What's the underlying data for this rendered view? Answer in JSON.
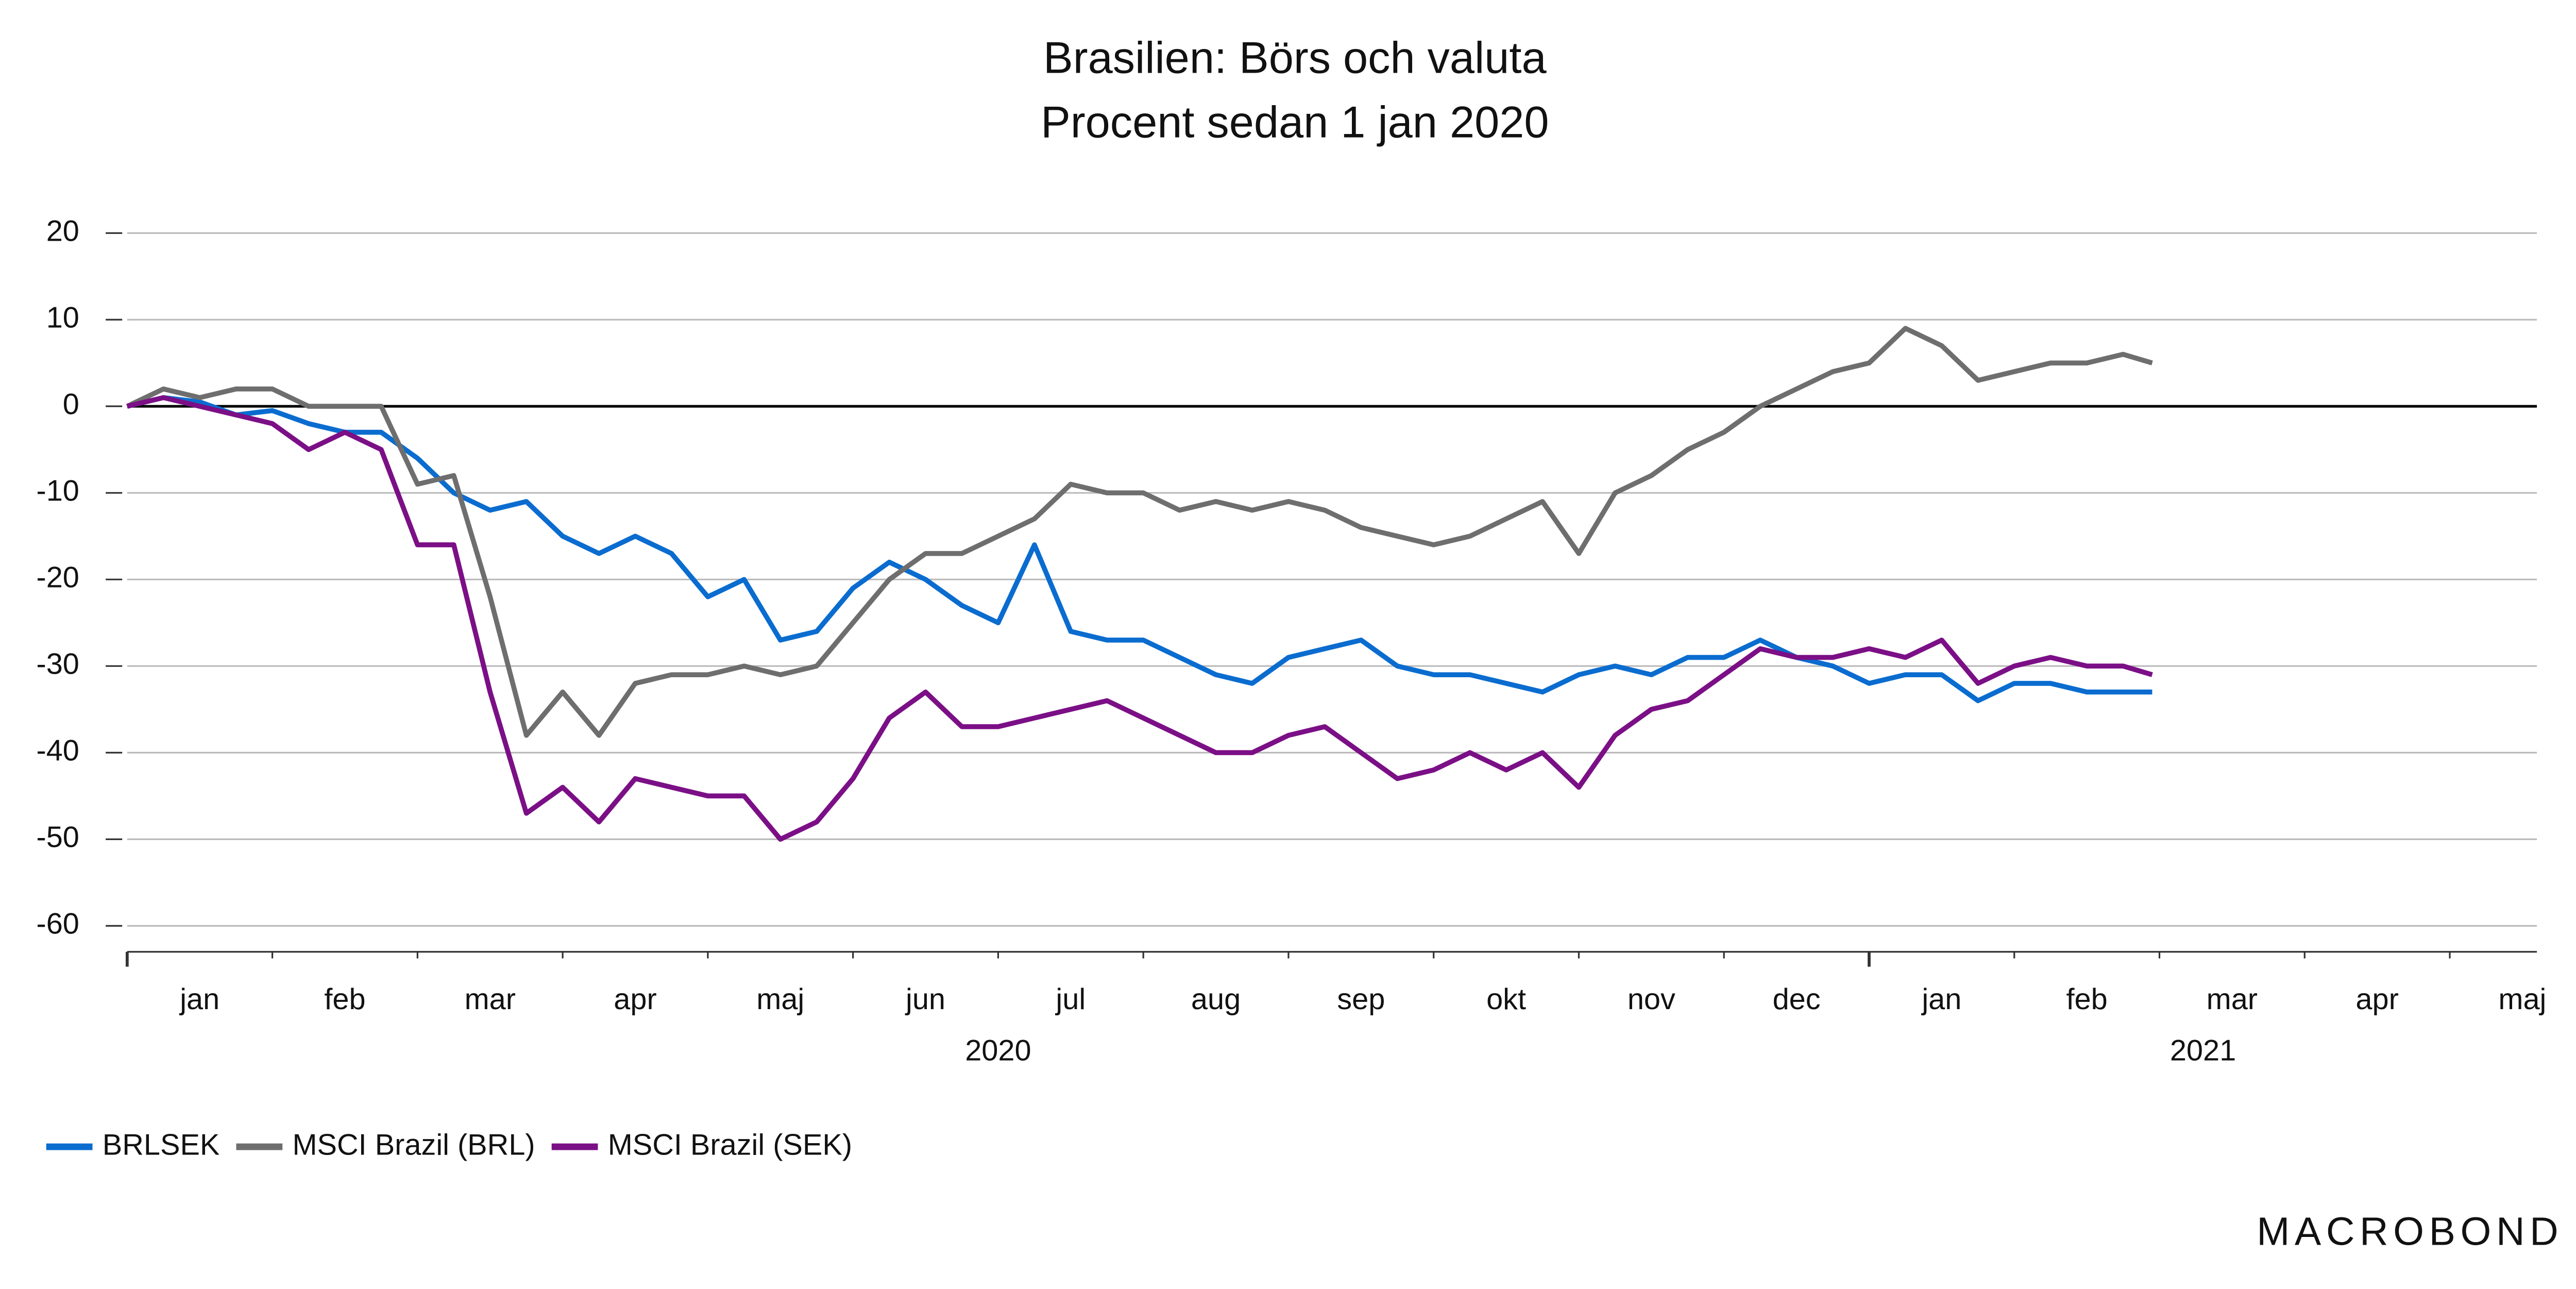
{
  "chart_data": {
    "type": "line",
    "title": "Brasilien: Börs och valuta",
    "subtitle": "Procent sedan 1 jan 2020",
    "x": [
      0,
      0.25,
      0.5,
      0.75,
      1,
      1.25,
      1.5,
      1.75,
      2,
      2.25,
      2.5,
      2.75,
      3,
      3.25,
      3.5,
      3.75,
      4,
      4.25,
      4.5,
      4.75,
      5,
      5.25,
      5.5,
      5.75,
      6,
      6.25,
      6.5,
      6.75,
      7,
      7.25,
      7.5,
      7.75,
      8,
      8.25,
      8.5,
      8.75,
      9,
      9.25,
      9.5,
      9.75,
      10,
      10.25,
      10.5,
      10.75,
      11,
      11.25,
      11.5,
      11.75,
      12,
      12.25,
      12.5,
      12.75,
      13,
      13.25,
      13.5,
      13.75,
      13.95
    ],
    "series": [
      {
        "name": "BRLSEK",
        "color": "#0a6ccf",
        "values": [
          0,
          1,
          0.5,
          -1,
          -0.5,
          -2,
          -3,
          -3,
          -6,
          -10,
          -12,
          -11,
          -15,
          -17,
          -15,
          -17,
          -22,
          -20,
          -27,
          -26,
          -21,
          -18,
          -20,
          -23,
          -25,
          -16,
          -26,
          -27,
          -27,
          -29,
          -31,
          -32,
          -29,
          -28,
          -27,
          -30,
          -31,
          -31,
          -32,
          -33,
          -31,
          -30,
          -31,
          -29,
          -29,
          -27,
          -29,
          -30,
          -32,
          -31,
          -31,
          -34,
          -32,
          -32,
          -33,
          -33,
          -33
        ]
      },
      {
        "name": "MSCI Brazil (BRL)",
        "color": "#6e6e6e",
        "values": [
          0,
          2,
          1,
          2,
          2,
          0,
          0,
          0,
          -9,
          -8,
          -22,
          -38,
          -33,
          -38,
          -32,
          -31,
          -31,
          -30,
          -31,
          -30,
          -25,
          -20,
          -17,
          -17,
          -15,
          -13,
          -9,
          -10,
          -10,
          -12,
          -11,
          -12,
          -11,
          -12,
          -14,
          -15,
          -16,
          -15,
          -13,
          -11,
          -17,
          -10,
          -8,
          -5,
          -3,
          0,
          2,
          4,
          5,
          9,
          7,
          3,
          4,
          5,
          5,
          6,
          5
        ]
      },
      {
        "name": "MSCI Brazil (SEK)",
        "color": "#7b0f86",
        "values": [
          0,
          1,
          0,
          -1,
          -2,
          -5,
          -3,
          -5,
          -16,
          -16,
          -33,
          -47,
          -44,
          -48,
          -43,
          -44,
          -45,
          -45,
          -50,
          -48,
          -43,
          -36,
          -33,
          -37,
          -37,
          -36,
          -35,
          -34,
          -36,
          -38,
          -40,
          -40,
          -38,
          -37,
          -40,
          -43,
          -42,
          -40,
          -42,
          -40,
          -44,
          -38,
          -35,
          -34,
          -31,
          -28,
          -29,
          -29,
          -28,
          -29,
          -27,
          -32,
          -30,
          -29,
          -30,
          -30,
          -31
        ]
      }
    ],
    "xlim": [
      0,
      16.6
    ],
    "xticks": [
      0,
      1,
      2,
      3,
      4,
      5,
      6,
      7,
      8,
      9,
      10,
      11,
      12,
      13,
      14,
      15,
      16
    ],
    "month_labels": [
      "jan",
      "feb",
      "mar",
      "apr",
      "maj",
      "jun",
      "jul",
      "aug",
      "sep",
      "okt",
      "nov",
      "dec",
      "jan",
      "feb",
      "mar",
      "apr",
      "maj"
    ],
    "year_labels": [
      "2020",
      "2021"
    ],
    "ylim": [
      -63,
      20
    ],
    "yticks": [
      20,
      10,
      0,
      -10,
      -20,
      -30,
      -40,
      -50,
      -60
    ],
    "grid": true,
    "legend": "bottom-left",
    "brand": "MACROBOND"
  }
}
